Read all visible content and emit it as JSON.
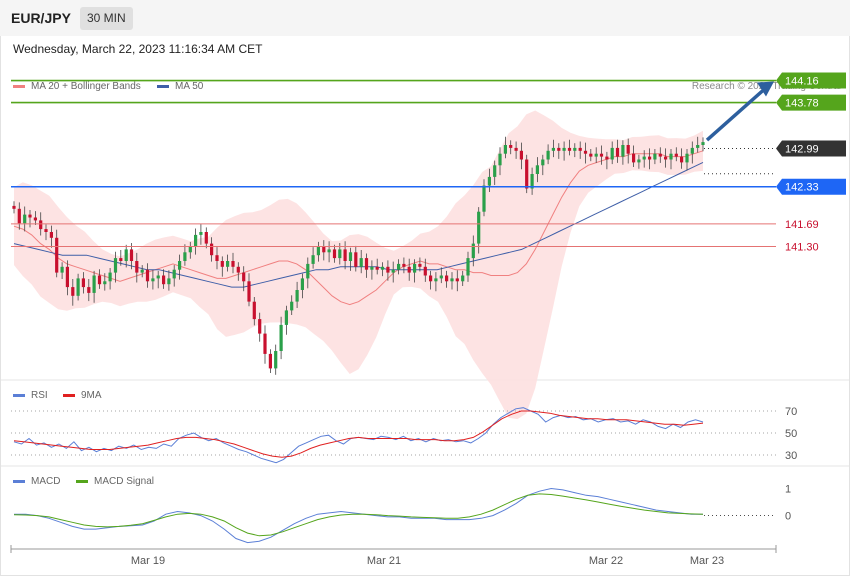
{
  "header": {
    "symbol": "EUR/JPY",
    "timeframe": "30 MIN",
    "datetime": "Wednesday, March 22, 2023 11:16:34 AM CET",
    "copyright": "Research © 2023 Trading Central"
  },
  "colors": {
    "ma20": "#f08080",
    "ma50": "#3f5fa8",
    "band": "#fde0e0",
    "bull": "#2aa04a",
    "bear": "#c8102e",
    "resistance": "#55a51c",
    "current": "#333333",
    "pivot": "#1e66f5",
    "support": "#e57373",
    "arrow": "#2d5f9e",
    "rsi": "#5b7fd6",
    "rsi_ma": "#e02020",
    "macd": "#5b7fd6",
    "macd_signal": "#55a51c"
  },
  "chart_data": [
    {
      "type": "candlestick",
      "title": "EUR/JPY",
      "legend": [
        "MA 20 + Bollinger Bands",
        "MA 50"
      ],
      "legend_position": "top-left",
      "grid": false,
      "x_ticks": [
        "Mar 19",
        "Mar 21",
        "Mar 22",
        "Mar 23"
      ],
      "ylim": [
        139.0,
        144.6
      ],
      "closes": [
        141.95,
        141.7,
        141.85,
        141.8,
        141.75,
        141.6,
        141.55,
        141.45,
        140.85,
        140.95,
        140.6,
        140.45,
        140.75,
        140.6,
        140.5,
        140.8,
        140.65,
        140.7,
        140.85,
        141.1,
        141.05,
        141.25,
        141.05,
        140.85,
        140.9,
        140.7,
        140.75,
        140.8,
        140.65,
        140.75,
        140.9,
        141.05,
        141.2,
        141.3,
        141.5,
        141.55,
        141.35,
        141.15,
        141.05,
        140.95,
        141.05,
        140.95,
        140.85,
        140.7,
        140.35,
        140.05,
        139.8,
        139.45,
        139.2,
        139.5,
        139.95,
        140.2,
        140.35,
        140.55,
        140.75,
        141.0,
        141.15,
        141.3,
        141.2,
        141.25,
        141.1,
        141.25,
        141.05,
        141.2,
        140.95,
        141.1,
        140.9,
        140.95,
        140.9,
        140.95,
        140.85,
        140.9,
        141.0,
        140.95,
        140.85,
        141.0,
        140.95,
        140.8,
        140.7,
        140.75,
        140.8,
        140.7,
        140.75,
        140.7,
        140.8,
        141.1,
        141.35,
        141.9,
        142.35,
        142.5,
        142.7,
        142.9,
        143.05,
        143.0,
        142.95,
        142.8,
        142.3,
        142.55,
        142.7,
        142.8,
        142.95,
        143.0,
        142.95,
        143.0,
        142.95,
        143.0,
        142.95,
        142.9,
        142.85,
        142.9,
        142.85,
        142.8,
        143.0,
        142.85,
        143.05,
        142.9,
        142.75,
        142.8,
        142.85,
        142.8,
        142.9,
        142.85,
        142.8,
        142.9,
        142.85,
        142.75,
        142.9,
        143.0,
        143.05,
        143.1
      ],
      "ma20": [
        141.65,
        141.6,
        141.5,
        141.35,
        141.25,
        141.1,
        141.0,
        140.95,
        140.9,
        140.85,
        140.8,
        140.75,
        140.7,
        140.75,
        140.8,
        140.85,
        140.9,
        140.95,
        141.0,
        140.95,
        140.9,
        140.85,
        140.8,
        140.75,
        140.75,
        140.8,
        140.85,
        140.9,
        140.95,
        141.0,
        141.05,
        141.05,
        141.0,
        140.9,
        140.75,
        140.6,
        140.45,
        140.35,
        140.3,
        140.35,
        140.45,
        140.55,
        140.7,
        140.85,
        140.95,
        141.0,
        141.05,
        141.0,
        141.0,
        140.95,
        140.9,
        140.9,
        140.85,
        140.85,
        140.8,
        140.8,
        140.8,
        140.85,
        141.0,
        141.25,
        141.55,
        141.85,
        142.15,
        142.4,
        142.6,
        142.7,
        142.75,
        142.8,
        142.85,
        142.85,
        142.9,
        142.9,
        142.9,
        142.9,
        142.85,
        142.85,
        142.85,
        142.9,
        142.95
      ],
      "ma50": [
        141.35,
        141.3,
        141.25,
        141.2,
        141.15,
        141.15,
        141.15,
        141.1,
        141.05,
        141.0,
        140.95,
        140.9,
        140.9,
        140.85,
        140.8,
        140.75,
        140.7,
        140.65,
        140.6,
        140.6,
        140.65,
        140.7,
        140.75,
        140.8,
        140.85,
        140.9,
        140.9,
        140.95,
        140.95,
        140.95,
        140.95,
        140.9,
        140.9,
        140.9,
        140.9,
        140.9,
        140.95,
        141.0,
        141.05,
        141.1,
        141.15,
        141.2,
        141.25,
        141.35,
        141.45,
        141.55,
        141.65,
        141.75,
        141.85,
        141.95,
        142.05,
        142.15,
        142.25,
        142.35,
        142.45,
        142.55,
        142.65,
        142.75
      ],
      "levels": [
        {
          "label": "144.16",
          "value": 144.16,
          "kind": "resistance"
        },
        {
          "label": "143.78",
          "value": 143.78,
          "kind": "resistance"
        },
        {
          "label": "142.99",
          "value": 142.99,
          "kind": "current"
        },
        {
          "label": "142.33",
          "value": 142.33,
          "kind": "pivot"
        },
        {
          "label": "141.69",
          "value": 141.69,
          "kind": "support"
        },
        {
          "label": "141.30",
          "value": 141.3,
          "kind": "support"
        }
      ],
      "arrow_target": 144.16
    },
    {
      "type": "line",
      "legend": [
        "RSI",
        "9MA"
      ],
      "legend_position": "top-left",
      "ylim": [
        20,
        80
      ],
      "y_ticks": [
        70,
        50,
        30
      ],
      "rsi": [
        42,
        40,
        45,
        39,
        41,
        37,
        40,
        36,
        42,
        34,
        37,
        33,
        36,
        34,
        38,
        36,
        39,
        35,
        37,
        36,
        40,
        38,
        45,
        48,
        50,
        46,
        43,
        45,
        41,
        38,
        35,
        33,
        30,
        27,
        25,
        23,
        26,
        32,
        38,
        41,
        44,
        47,
        48,
        43,
        40,
        45,
        46,
        45,
        44,
        47,
        46,
        44,
        47,
        43,
        45,
        42,
        45,
        43,
        44,
        42,
        43,
        41,
        45,
        50,
        58,
        64,
        68,
        72,
        73,
        70,
        67,
        60,
        64,
        66,
        64,
        65,
        62,
        63,
        60,
        62,
        63,
        60,
        61,
        58,
        62,
        60,
        56,
        54,
        58,
        55,
        60,
        62,
        60
      ],
      "rsi_ma": [
        43,
        42,
        41,
        40,
        39,
        38,
        37,
        36,
        35,
        35,
        35,
        36,
        37,
        38,
        39,
        41,
        43,
        45,
        46,
        46,
        45,
        44,
        42,
        40,
        37,
        34,
        31,
        29,
        28,
        29,
        32,
        36,
        39,
        41,
        43,
        45,
        46,
        45,
        45,
        45,
        45,
        45,
        44,
        44,
        44,
        43,
        43,
        44,
        46,
        51,
        57,
        63,
        67,
        70,
        70,
        69,
        68,
        66,
        65,
        64,
        63,
        63,
        62,
        62,
        62,
        61,
        60,
        59,
        58,
        58,
        57,
        58,
        59
      ]
    },
    {
      "type": "line",
      "legend": [
        "MACD",
        "MACD Signal"
      ],
      "legend_position": "top-left",
      "ylim": [
        -1.2,
        1.5
      ],
      "y_ticks": [
        1,
        0
      ],
      "macd": [
        0.05,
        0.05,
        0.0,
        -0.1,
        -0.25,
        -0.4,
        -0.5,
        -0.5,
        -0.45,
        -0.4,
        -0.38,
        -0.35,
        -0.2,
        0.05,
        0.15,
        0.1,
        0.0,
        -0.2,
        -0.5,
        -0.85,
        -1.0,
        -0.95,
        -0.8,
        -0.55,
        -0.3,
        -0.1,
        0.05,
        0.1,
        0.15,
        0.1,
        0.05,
        0.0,
        -0.05,
        -0.05,
        -0.1,
        -0.1,
        -0.1,
        -0.15,
        -0.15,
        -0.15,
        -0.1,
        0.0,
        0.2,
        0.45,
        0.75,
        0.9,
        1.0,
        0.95,
        0.85,
        0.75,
        0.7,
        0.6,
        0.5,
        0.4,
        0.3,
        0.2,
        0.15,
        0.1,
        0.05,
        0.05
      ],
      "macd_signal": [
        0.03,
        0.02,
        0.0,
        -0.05,
        -0.15,
        -0.25,
        -0.35,
        -0.4,
        -0.42,
        -0.4,
        -0.36,
        -0.3,
        -0.18,
        -0.05,
        0.05,
        0.08,
        0.05,
        -0.05,
        -0.2,
        -0.45,
        -0.65,
        -0.75,
        -0.72,
        -0.6,
        -0.45,
        -0.3,
        -0.15,
        -0.05,
        0.02,
        0.05,
        0.05,
        0.03,
        0.0,
        -0.02,
        -0.05,
        -0.07,
        -0.08,
        -0.1,
        -0.1,
        -0.05,
        0.05,
        0.2,
        0.4,
        0.6,
        0.75,
        0.8,
        0.78,
        0.72,
        0.65,
        0.58,
        0.5,
        0.42,
        0.34,
        0.27,
        0.2,
        0.15,
        0.1,
        0.08,
        0.06,
        0.05
      ]
    }
  ]
}
